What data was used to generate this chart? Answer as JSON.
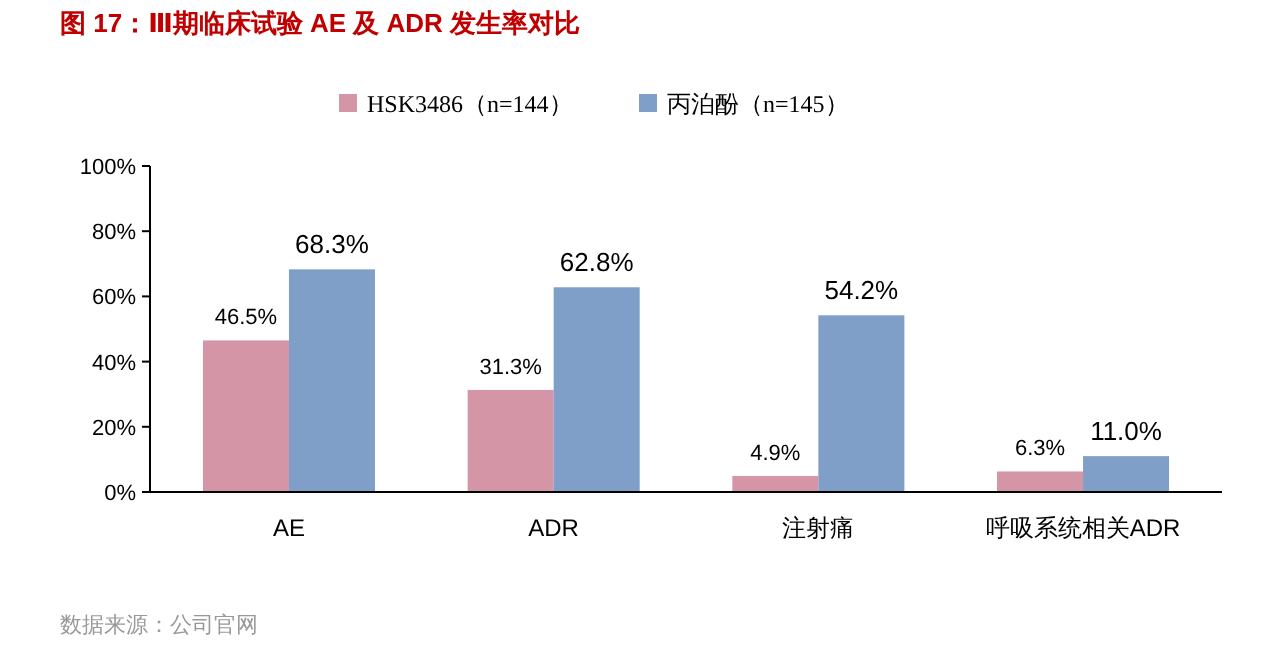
{
  "chart_data": {
    "type": "bar",
    "title": "图 17：Ⅲ期临床试验 AE 及 ADR 发生率对比",
    "categories": [
      "AE",
      "ADR",
      "注射痛",
      "呼吸系统相关ADR"
    ],
    "series": [
      {
        "name": "HSK3486（n=144）",
        "color": "#d495a7",
        "values": [
          46.5,
          31.3,
          4.9,
          6.3
        ],
        "value_labels": [
          "46.5%",
          "31.3%",
          "4.9%",
          "6.3%"
        ]
      },
      {
        "name": "丙泊酚（n=145）",
        "color": "#7f9ec8",
        "values": [
          68.3,
          62.8,
          54.2,
          11.0
        ],
        "value_labels": [
          "68.3%",
          "62.8%",
          "54.2%",
          "11.0%"
        ]
      }
    ],
    "ylim": [
      0,
      100
    ],
    "yticks": [
      {
        "value": 0,
        "label": "0%"
      },
      {
        "value": 20,
        "label": "20%"
      },
      {
        "value": 40,
        "label": "40%"
      },
      {
        "value": 60,
        "label": "60%"
      },
      {
        "value": 80,
        "label": "80%"
      },
      {
        "value": 100,
        "label": "100%"
      }
    ],
    "legend": "top",
    "grid": false,
    "annotations": [
      "数据来源：公司官网"
    ]
  }
}
